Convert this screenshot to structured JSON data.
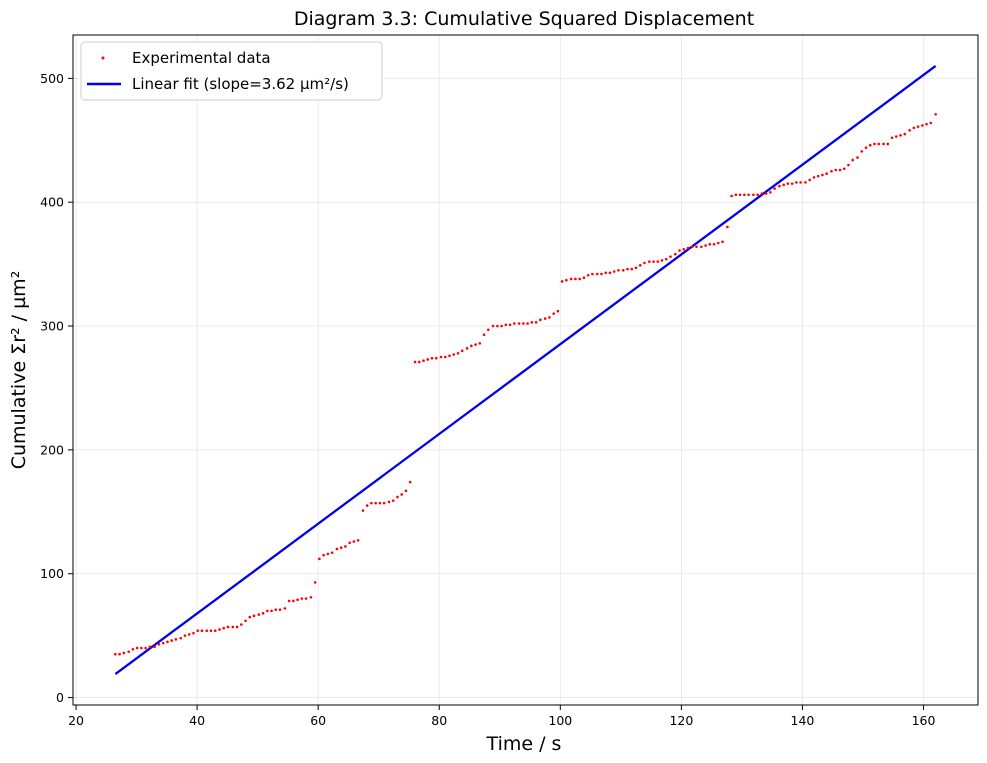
{
  "chart_data": {
    "type": "scatter",
    "title": "Diagram 3.3: Cumulative Squared Displacement",
    "xlabel": "Time / s",
    "ylabel": "Cumulative Σr² / µm²",
    "xlim": [
      19.5,
      169
    ],
    "ylim": [
      -6,
      535
    ],
    "xticks": [
      20,
      40,
      60,
      80,
      100,
      120,
      140,
      160
    ],
    "yticks": [
      0,
      100,
      200,
      300,
      400,
      500
    ],
    "grid": true,
    "legend_position": "top-left",
    "series": [
      {
        "name": "Experimental data",
        "kind": "scatter",
        "color": "#ff0000",
        "points": [
          [
            26.5,
            35
          ],
          [
            27.2,
            35
          ],
          [
            27.9,
            36
          ],
          [
            28.7,
            37
          ],
          [
            29.4,
            39
          ],
          [
            30.1,
            40
          ],
          [
            30.8,
            40
          ],
          [
            31.5,
            40
          ],
          [
            32.2,
            41
          ],
          [
            33.0,
            41
          ],
          [
            33.7,
            43
          ],
          [
            34.4,
            44
          ],
          [
            35.1,
            45
          ],
          [
            35.8,
            46
          ],
          [
            36.5,
            47
          ],
          [
            37.3,
            48
          ],
          [
            38.0,
            50
          ],
          [
            38.7,
            51
          ],
          [
            39.4,
            52
          ],
          [
            40.1,
            54
          ],
          [
            40.8,
            54
          ],
          [
            41.6,
            54
          ],
          [
            42.3,
            54
          ],
          [
            43.0,
            54
          ],
          [
            43.7,
            55
          ],
          [
            44.4,
            56
          ],
          [
            45.1,
            57
          ],
          [
            45.9,
            57
          ],
          [
            46.6,
            57
          ],
          [
            47.3,
            59
          ],
          [
            48.0,
            62
          ],
          [
            48.7,
            65
          ],
          [
            49.4,
            66
          ],
          [
            50.2,
            67
          ],
          [
            50.9,
            68
          ],
          [
            51.6,
            70
          ],
          [
            52.3,
            70
          ],
          [
            53.0,
            71
          ],
          [
            53.7,
            71
          ],
          [
            54.5,
            72
          ],
          [
            55.2,
            78
          ],
          [
            55.9,
            78
          ],
          [
            56.6,
            79
          ],
          [
            57.3,
            80
          ],
          [
            58.0,
            80
          ],
          [
            58.8,
            81
          ],
          [
            59.5,
            93
          ],
          [
            60.2,
            112
          ],
          [
            60.9,
            115
          ],
          [
            61.6,
            116
          ],
          [
            62.3,
            117
          ],
          [
            63.1,
            120
          ],
          [
            63.8,
            121
          ],
          [
            64.5,
            122
          ],
          [
            65.2,
            125
          ],
          [
            65.9,
            126
          ],
          [
            66.6,
            127
          ],
          [
            67.4,
            151
          ],
          [
            68.1,
            155
          ],
          [
            68.8,
            157
          ],
          [
            69.5,
            157
          ],
          [
            70.2,
            157
          ],
          [
            70.9,
            157
          ],
          [
            71.7,
            158
          ],
          [
            72.4,
            159
          ],
          [
            73.1,
            162
          ],
          [
            73.8,
            164
          ],
          [
            74.5,
            167
          ],
          [
            75.2,
            174
          ],
          [
            76.0,
            271
          ],
          [
            76.7,
            271
          ],
          [
            77.4,
            272
          ],
          [
            78.1,
            273
          ],
          [
            78.8,
            274
          ],
          [
            79.5,
            274
          ],
          [
            80.3,
            275
          ],
          [
            81.0,
            275
          ],
          [
            81.7,
            276
          ],
          [
            82.4,
            277
          ],
          [
            83.1,
            278
          ],
          [
            83.8,
            280
          ],
          [
            84.6,
            282
          ],
          [
            85.3,
            284
          ],
          [
            86.0,
            285
          ],
          [
            86.7,
            286
          ],
          [
            87.4,
            293
          ],
          [
            88.1,
            297
          ],
          [
            88.9,
            300
          ],
          [
            89.6,
            300
          ],
          [
            90.3,
            300
          ],
          [
            91.0,
            301
          ],
          [
            91.7,
            301
          ],
          [
            92.4,
            302
          ],
          [
            93.2,
            302
          ],
          [
            93.9,
            302
          ],
          [
            94.6,
            302
          ],
          [
            95.3,
            303
          ],
          [
            96.0,
            303
          ],
          [
            96.7,
            305
          ],
          [
            97.5,
            306
          ],
          [
            98.2,
            307
          ],
          [
            98.9,
            310
          ],
          [
            99.6,
            312
          ],
          [
            100.3,
            336
          ],
          [
            101.0,
            337
          ],
          [
            101.8,
            338
          ],
          [
            102.5,
            338
          ],
          [
            103.2,
            338
          ],
          [
            103.9,
            339
          ],
          [
            104.6,
            341
          ],
          [
            105.3,
            342
          ],
          [
            106.1,
            342
          ],
          [
            106.8,
            342
          ],
          [
            107.5,
            343
          ],
          [
            108.2,
            343
          ],
          [
            108.9,
            344
          ],
          [
            109.6,
            345
          ],
          [
            110.4,
            345
          ],
          [
            111.1,
            346
          ],
          [
            111.8,
            346
          ],
          [
            112.5,
            347
          ],
          [
            113.2,
            349
          ],
          [
            113.9,
            351
          ],
          [
            114.7,
            352
          ],
          [
            115.4,
            352
          ],
          [
            116.1,
            352
          ],
          [
            116.8,
            353
          ],
          [
            117.5,
            354
          ],
          [
            118.2,
            356
          ],
          [
            119.0,
            358
          ],
          [
            119.7,
            361
          ],
          [
            120.4,
            362
          ],
          [
            121.1,
            363
          ],
          [
            121.8,
            364
          ],
          [
            122.5,
            364
          ],
          [
            123.3,
            364
          ],
          [
            124.0,
            365
          ],
          [
            124.7,
            366
          ],
          [
            125.4,
            366
          ],
          [
            126.1,
            367
          ],
          [
            126.8,
            368
          ],
          [
            127.6,
            380
          ],
          [
            128.3,
            405
          ],
          [
            129.0,
            406
          ],
          [
            129.7,
            406
          ],
          [
            130.4,
            406
          ],
          [
            131.1,
            406
          ],
          [
            131.9,
            406
          ],
          [
            132.6,
            406
          ],
          [
            133.3,
            407
          ],
          [
            134.0,
            407
          ],
          [
            134.7,
            408
          ],
          [
            135.4,
            411
          ],
          [
            136.2,
            413
          ],
          [
            136.9,
            414
          ],
          [
            137.6,
            415
          ],
          [
            138.3,
            415
          ],
          [
            139.0,
            416
          ],
          [
            139.7,
            416
          ],
          [
            140.5,
            416
          ],
          [
            141.2,
            418
          ],
          [
            141.9,
            420
          ],
          [
            142.6,
            421
          ],
          [
            143.3,
            422
          ],
          [
            144.0,
            423
          ],
          [
            144.8,
            425
          ],
          [
            145.5,
            426
          ],
          [
            146.2,
            426
          ],
          [
            146.9,
            427
          ],
          [
            147.6,
            430
          ],
          [
            148.3,
            434
          ],
          [
            149.1,
            436
          ],
          [
            149.8,
            441
          ],
          [
            150.5,
            444
          ],
          [
            151.2,
            446
          ],
          [
            151.9,
            447
          ],
          [
            152.6,
            447
          ],
          [
            153.4,
            447
          ],
          [
            154.1,
            447
          ],
          [
            154.8,
            452
          ],
          [
            155.5,
            453
          ],
          [
            156.2,
            454
          ],
          [
            156.9,
            455
          ],
          [
            157.7,
            458
          ],
          [
            158.4,
            460
          ],
          [
            159.1,
            461
          ],
          [
            159.8,
            462
          ],
          [
            160.5,
            463
          ],
          [
            161.2,
            464
          ],
          [
            162.0,
            471
          ]
        ]
      },
      {
        "name": "Linear fit (slope=3.62 µm²/s)",
        "kind": "line",
        "color": "#0000ee",
        "points": [
          [
            26.5,
            19
          ],
          [
            162.0,
            510
          ]
        ]
      }
    ]
  }
}
